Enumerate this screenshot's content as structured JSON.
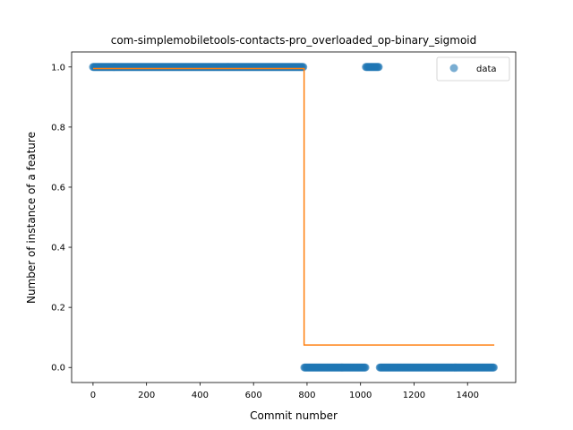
{
  "chart_data": {
    "type": "scatter",
    "title": "com-simplemobiletools-contacts-pro_overloaded_op-binary_sigmoid",
    "xlabel": "Commit number",
    "ylabel": "Number of instance of a feature",
    "xlim": [
      -80,
      1580
    ],
    "ylim": [
      -0.05,
      1.05
    ],
    "xticks": [
      0,
      200,
      400,
      600,
      800,
      1000,
      1200,
      1400
    ],
    "yticks": [
      0.0,
      0.2,
      0.4,
      0.6,
      0.8,
      1.0
    ],
    "xtick_labels": [
      "0",
      "200",
      "400",
      "600",
      "800",
      "1000",
      "1200",
      "1400"
    ],
    "ytick_labels": [
      "0.0",
      "0.2",
      "0.4",
      "0.6",
      "0.8",
      "1.0"
    ],
    "legend": {
      "placement": "top-right",
      "entries": [
        "data"
      ]
    },
    "grid": false,
    "series": [
      {
        "name": "data",
        "kind": "scatter",
        "color": "#1f77b4",
        "segments": [
          {
            "x_start": 0,
            "x_end": 788,
            "step": 3,
            "y": 1
          },
          {
            "x_start": 790,
            "x_end": 1018,
            "step": 3,
            "y": 0
          },
          {
            "x_start": 1020,
            "x_end": 1070,
            "step": 3,
            "y": 1
          },
          {
            "x_start": 1072,
            "x_end": 1500,
            "step": 3,
            "y": 0
          }
        ]
      },
      {
        "kind": "step",
        "color": "#ff7f0e",
        "x": [
          0,
          789,
          789,
          1500
        ],
        "y": [
          0.995,
          0.995,
          0.075,
          0.075
        ]
      }
    ]
  }
}
